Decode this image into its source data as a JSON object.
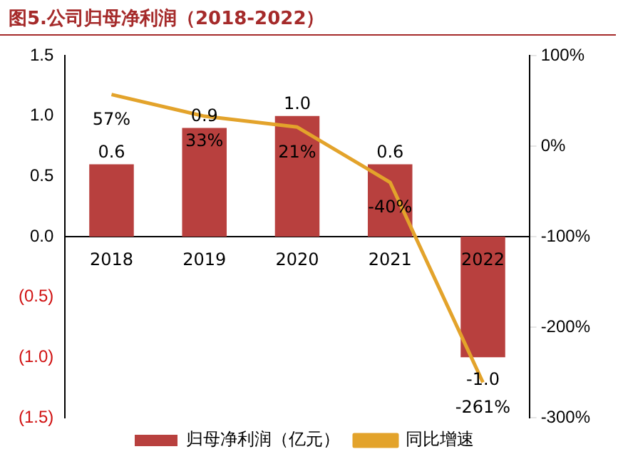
{
  "chart_data": {
    "type": "bar",
    "title": "图5.公司归母净利润（2018-2022）",
    "categories": [
      "2018",
      "2019",
      "2020",
      "2021",
      "2022"
    ],
    "series": [
      {
        "name": "归母净利润（亿元）",
        "color": "#b8403e",
        "values": [
          0.6,
          0.9,
          1.0,
          0.6,
          -1.0
        ],
        "value_labels": [
          "0.6",
          "0.9",
          "1.0",
          "0.6",
          "-1.0"
        ]
      },
      {
        "name": "同比增速",
        "type": "line",
        "axis": "y2",
        "color": "#e3a32b",
        "values": [
          57,
          33,
          21,
          -40,
          -261
        ],
        "value_labels": [
          "57%",
          "33%",
          "21%",
          "-40%",
          "-261%"
        ]
      }
    ],
    "ylim": [
      -1.5,
      1.5
    ],
    "yticks": [
      {
        "value": -1.5,
        "label": "(1.5)"
      },
      {
        "value": -1.0,
        "label": "(1.0)"
      },
      {
        "value": -0.5,
        "label": "(0.5)"
      },
      {
        "value": 0,
        "label": "0.0"
      },
      {
        "value": 0.5,
        "label": "0.5"
      },
      {
        "value": 1.0,
        "label": "1.0"
      },
      {
        "value": 1.5,
        "label": "1.5"
      }
    ],
    "y2lim": [
      -300,
      100
    ],
    "y2ticks": [
      {
        "value": -300,
        "label": "-300%"
      },
      {
        "value": -200,
        "label": "-200%"
      },
      {
        "value": -100,
        "label": "-100%"
      },
      {
        "value": 0,
        "label": "0%"
      },
      {
        "value": 100,
        "label": "100%"
      }
    ],
    "data_labels": true,
    "grid": false,
    "legend": "bottom",
    "marker": "none"
  }
}
